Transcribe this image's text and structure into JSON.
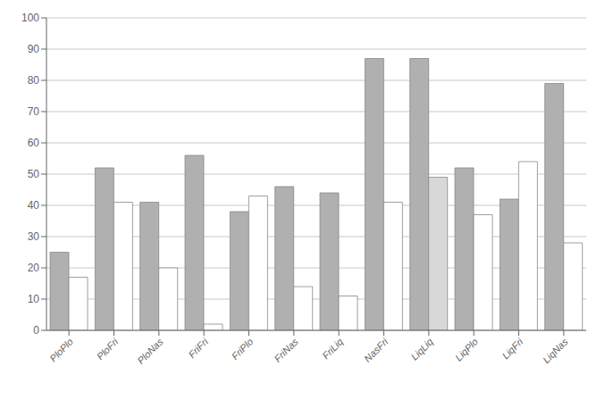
{
  "chart_data": {
    "type": "bar",
    "categories": [
      "PloPlo",
      "PloFri",
      "PloNas",
      "FriFri",
      "FriPlo",
      "FriNas",
      "FriLiq",
      "NasFri",
      "LiqLiq",
      "LiqPlo",
      "LiqFri",
      "LiqNas"
    ],
    "series": [
      {
        "color": "#b0b0b0",
        "values": [
          25,
          52,
          41,
          56,
          38,
          46,
          44,
          87,
          87,
          52,
          42,
          79
        ]
      },
      {
        "colors": [
          "#ffffff",
          "#ffffff",
          "#ffffff",
          "#ffffff",
          "#ffffff",
          "#ffffff",
          "#ffffff",
          "#ffffff",
          "#d8d8d8",
          "#ffffff",
          "#ffffff",
          "#ffffff"
        ],
        "values": [
          17,
          41,
          20,
          2,
          43,
          14,
          11,
          41,
          49,
          37,
          54,
          28
        ]
      }
    ],
    "ylim": [
      0,
      100
    ],
    "yticks": [
      0,
      10,
      20,
      30,
      40,
      50,
      60,
      70,
      80,
      90,
      100
    ],
    "grid": true
  }
}
